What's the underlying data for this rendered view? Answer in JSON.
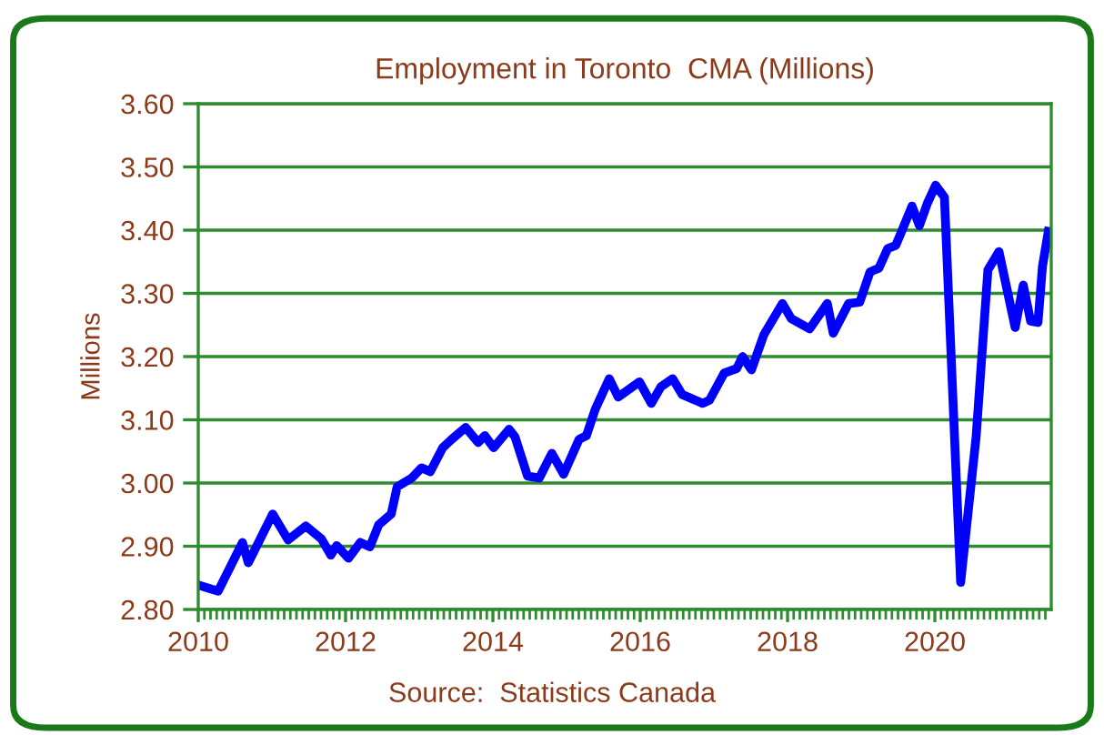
{
  "chart_data": {
    "type": "line",
    "title": "Employment in Toronto  CMA (Millions)",
    "ylabel": "Millions",
    "annotations": [
      "Source:  Statistics Canada"
    ],
    "x": [
      2010.02,
      2010.27,
      2010.6,
      2010.68,
      2011.01,
      2011.22,
      2011.46,
      2011.67,
      2011.8,
      2011.88,
      2012.04,
      2012.2,
      2012.33,
      2012.45,
      2012.62,
      2012.7,
      2012.9,
      2013.03,
      2013.15,
      2013.32,
      2013.44,
      2013.63,
      2013.8,
      2013.89,
      2014.01,
      2014.22,
      2014.3,
      2014.47,
      2014.63,
      2014.8,
      2014.96,
      2015.17,
      2015.27,
      2015.39,
      2015.58,
      2015.7,
      2015.99,
      2016.15,
      2016.28,
      2016.44,
      2016.57,
      2016.85,
      2016.94,
      2017.14,
      2017.31,
      2017.39,
      2017.51,
      2017.68,
      2017.93,
      2018.05,
      2018.3,
      2018.54,
      2018.62,
      2018.83,
      2018.98,
      2019.12,
      2019.24,
      2019.36,
      2019.47,
      2019.57,
      2019.69,
      2019.79,
      2019.9,
      2020.01,
      2020.13,
      2020.35,
      2020.56,
      2020.72,
      2020.87,
      2021.09,
      2021.2,
      2021.3,
      2021.4,
      2021.46,
      2021.54
    ],
    "series": [
      {
        "color": "#0000ff",
        "values": [
          2.838,
          2.829,
          2.906,
          2.874,
          2.951,
          2.91,
          2.932,
          2.912,
          2.886,
          2.901,
          2.881,
          2.906,
          2.899,
          2.934,
          2.951,
          2.994,
          3.008,
          3.024,
          3.018,
          3.056,
          3.069,
          3.088,
          3.064,
          3.075,
          3.056,
          3.085,
          3.073,
          3.011,
          3.008,
          3.047,
          3.014,
          3.069,
          3.075,
          3.117,
          3.165,
          3.136,
          3.16,
          3.126,
          3.152,
          3.165,
          3.14,
          3.126,
          3.131,
          3.174,
          3.181,
          3.2,
          3.179,
          3.235,
          3.284,
          3.26,
          3.244,
          3.284,
          3.237,
          3.284,
          3.286,
          3.334,
          3.34,
          3.371,
          3.376,
          3.404,
          3.438,
          3.407,
          3.443,
          3.471,
          3.452,
          2.843,
          3.073,
          3.337,
          3.366,
          3.246,
          3.313,
          3.256,
          3.254,
          3.342,
          3.398
        ]
      }
    ],
    "xlim": [
      2010,
      2021.58
    ],
    "xticks": [
      2010,
      2012,
      2014,
      2016,
      2018,
      2020
    ],
    "ylim": [
      2.8,
      3.6
    ],
    "yticks": [
      {
        "value": 2.8,
        "label": "2.80"
      },
      {
        "value": 2.9,
        "label": "2.90"
      },
      {
        "value": 3.0,
        "label": "3.00"
      },
      {
        "value": 3.1,
        "label": "3.10"
      },
      {
        "value": 3.2,
        "label": "3.20"
      },
      {
        "value": 3.3,
        "label": "3.30"
      },
      {
        "value": 3.4,
        "label": "3.40"
      },
      {
        "value": 3.5,
        "label": "3.50"
      },
      {
        "value": 3.6,
        "label": "3.60"
      }
    ],
    "grid": "y",
    "line_style": "solid"
  }
}
